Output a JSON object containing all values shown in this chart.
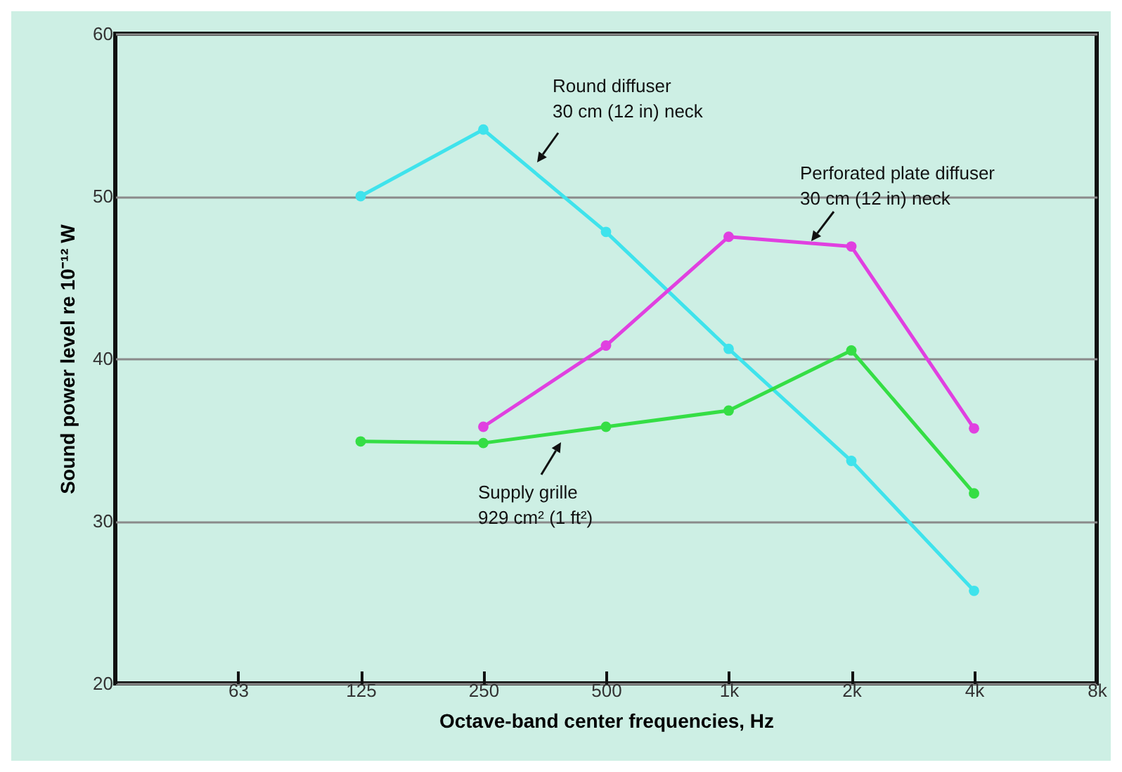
{
  "chart_data": {
    "type": "line",
    "xlabel": "Octave-band center frequencies, Hz",
    "ylabel": "Sound power level  re 10⁻¹² W",
    "categories": [
      null,
      "63",
      "125",
      "250",
      "500",
      "1k",
      "2k",
      "4k",
      "8k"
    ],
    "series": [
      {
        "name": "Round diffuser\n30 cm (12 in) neck",
        "color": "#3fe3ec",
        "values": [
          null,
          null,
          50,
          54.1,
          47.8,
          40.6,
          33.7,
          25.7,
          null
        ]
      },
      {
        "name": "Perforated plate diffuser\n30 cm (12 in) neck",
        "color": "#e040e0",
        "values": [
          null,
          null,
          null,
          35.8,
          40.8,
          47.5,
          46.9,
          35.7,
          null
        ]
      },
      {
        "name": "Supply grille\n929 cm² (1 ft²)",
        "color": "#35de45",
        "values": [
          null,
          null,
          34.9,
          34.8,
          35.8,
          36.8,
          40.5,
          31.7,
          null
        ]
      }
    ],
    "ylim": [
      20,
      60
    ],
    "yticks": [
      20,
      30,
      40,
      50,
      60
    ],
    "grid": "y",
    "marker": "circle",
    "line_style": "solid"
  }
}
